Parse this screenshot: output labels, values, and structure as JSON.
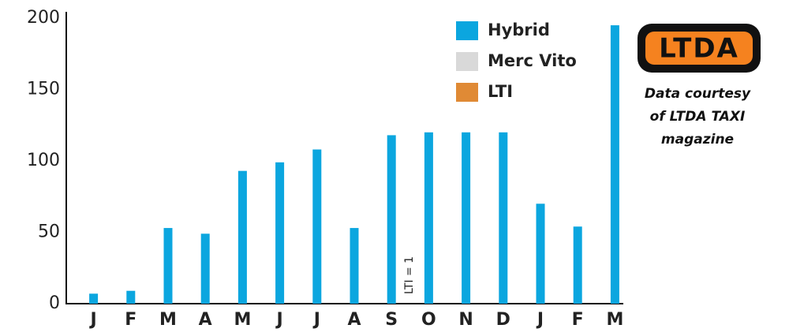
{
  "chart_data": {
    "type": "bar",
    "categories": [
      "J",
      "F",
      "M",
      "A",
      "M",
      "J",
      "J",
      "A",
      "S",
      "O",
      "N",
      "D",
      "J",
      "F",
      "M"
    ],
    "series": [
      {
        "name": "Hybrid",
        "color": "#0ba6df",
        "values": [
          7,
          9,
          53,
          49,
          93,
          99,
          108,
          53,
          118,
          120,
          120,
          120,
          70,
          54,
          195
        ]
      },
      {
        "name": "Merc Vito",
        "color": "#d9d9d9",
        "values": [
          null,
          null,
          null,
          null,
          null,
          null,
          null,
          null,
          null,
          null,
          null,
          null,
          null,
          null,
          null
        ]
      },
      {
        "name": "LTI",
        "color": "#e08a35",
        "values": [
          null,
          null,
          null,
          null,
          null,
          null,
          null,
          null,
          null,
          1,
          null,
          null,
          null,
          null,
          null
        ]
      }
    ],
    "ylim": [
      0,
      200
    ],
    "yticks": [
      0,
      50,
      100,
      150,
      200
    ],
    "grid": false,
    "annotations": [
      "LTI = 1"
    ],
    "logo_text": "LTDA",
    "credit_lines": [
      "Data courtesy",
      "of LTDA TAXI",
      "magazine"
    ]
  }
}
